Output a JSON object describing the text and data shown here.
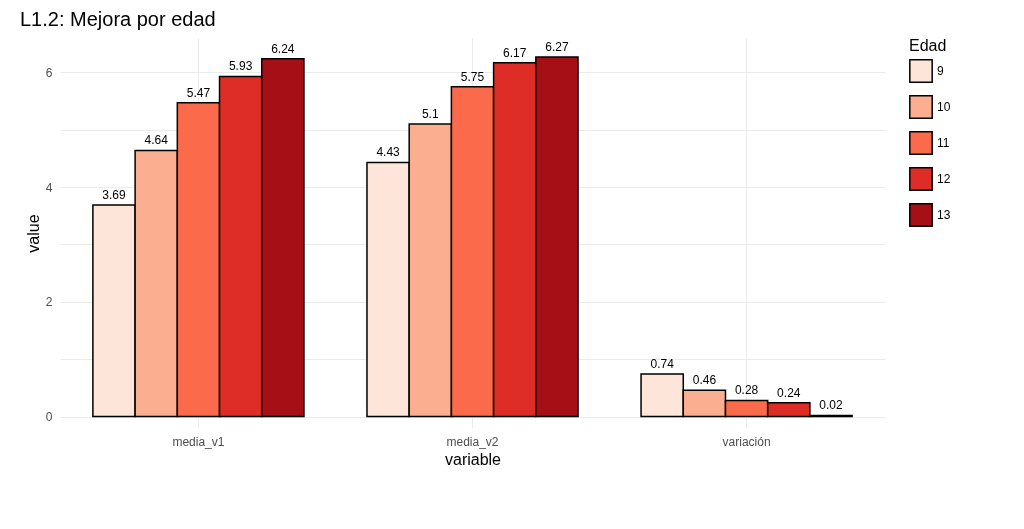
{
  "chart_data": {
    "type": "bar",
    "title": "L1.2: Mejora por edad",
    "xlabel": "variable",
    "ylabel": "value",
    "legend_title": "Edad",
    "categories": [
      "media_v1",
      "media_v2",
      "variación"
    ],
    "series": [
      {
        "name": "9",
        "color": "#fee5d9",
        "values": [
          3.69,
          4.43,
          0.74
        ]
      },
      {
        "name": "10",
        "color": "#fcae91",
        "values": [
          4.64,
          5.1,
          0.46
        ]
      },
      {
        "name": "11",
        "color": "#fb6a4a",
        "values": [
          5.47,
          5.75,
          0.28
        ]
      },
      {
        "name": "12",
        "color": "#de2d26",
        "values": [
          5.93,
          6.17,
          0.24
        ]
      },
      {
        "name": "13",
        "color": "#a50f15",
        "values": [
          6.24,
          6.27,
          0.02
        ]
      }
    ],
    "ylim": [
      -0.2,
      6.6
    ],
    "yticks": [
      0,
      {
        "value": 1,
        "label": null
      },
      2,
      {
        "value": 3,
        "label": null
      },
      4,
      {
        "value": 5,
        "label": null
      },
      6
    ],
    "grid": true,
    "legend": "right",
    "data_labels": true
  }
}
